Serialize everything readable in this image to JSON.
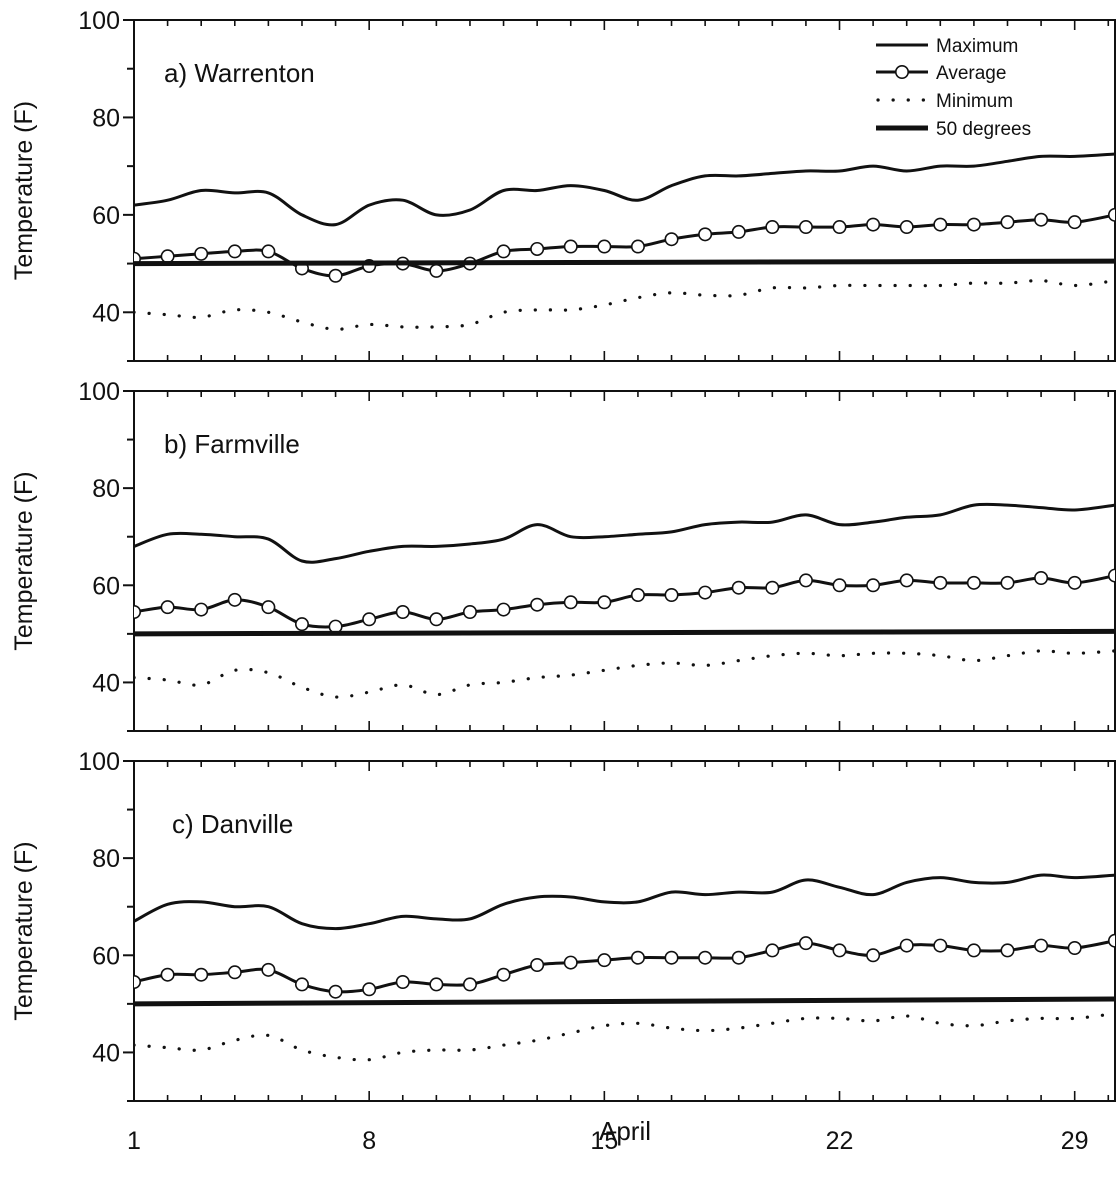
{
  "chart_data": {
    "type": "line",
    "xlabel": "April",
    "ylabel": "Temperature (F)",
    "xlim": [
      1,
      30.2
    ],
    "ylim": [
      30,
      100
    ],
    "x_ticks": [
      1,
      8,
      15,
      22,
      29
    ],
    "y_ticks": [
      40,
      60,
      80,
      100
    ],
    "legend": {
      "position": "top-right",
      "entries": [
        {
          "series": "max",
          "label": "Maximum"
        },
        {
          "series": "avg",
          "label": "Average"
        },
        {
          "series": "min",
          "label": "Minimum"
        },
        {
          "series": "base",
          "label": "50 degrees"
        }
      ]
    },
    "panels": [
      {
        "title": "a) Warrenton",
        "series": [
          {
            "key": "max",
            "name": "Maximum",
            "style": "solid",
            "x": [
              1,
              2,
              3,
              4,
              5,
              6,
              7,
              8,
              9,
              10,
              11,
              12,
              13,
              14,
              15,
              16,
              17,
              18,
              19,
              20,
              21,
              22,
              23,
              24,
              25,
              26,
              27,
              28,
              29,
              30.2
            ],
            "values": [
              62,
              63,
              65,
              64.5,
              64.5,
              60,
              58,
              62,
              63,
              60,
              61,
              65,
              65,
              66,
              65,
              63,
              66,
              68,
              68,
              68.5,
              69,
              69,
              70,
              69,
              70,
              70,
              71,
              72,
              72,
              72.5
            ]
          },
          {
            "key": "avg",
            "name": "Average",
            "style": "markers",
            "x": [
              1,
              2,
              3,
              4,
              5,
              6,
              7,
              8,
              9,
              10,
              11,
              12,
              13,
              14,
              15,
              16,
              17,
              18,
              19,
              20,
              21,
              22,
              23,
              24,
              25,
              26,
              27,
              28,
              29,
              30.2
            ],
            "values": [
              51,
              51.5,
              52,
              52.5,
              52.5,
              49,
              47.5,
              49.5,
              50,
              48.5,
              50,
              52.5,
              53,
              53.5,
              53.5,
              53.5,
              55,
              56,
              56.5,
              57.5,
              57.5,
              57.5,
              58,
              57.5,
              58,
              58,
              58.5,
              59,
              58.5,
              60
            ]
          },
          {
            "key": "min",
            "name": "Minimum",
            "style": "dotted",
            "x": [
              1,
              2,
              3,
              4,
              5,
              6,
              7,
              8,
              9,
              10,
              11,
              12,
              13,
              14,
              15,
              16,
              17,
              18,
              19,
              20,
              21,
              22,
              23,
              24,
              25,
              26,
              27,
              28,
              29,
              30.2
            ],
            "values": [
              40,
              39.5,
              39,
              40.5,
              40,
              38,
              36.5,
              37.5,
              37,
              37,
              37.5,
              40,
              40.5,
              40.5,
              41.5,
              43,
              44,
              43.5,
              43.5,
              45,
              45,
              45.5,
              45.5,
              45.5,
              45.5,
              46,
              46,
              46.5,
              45.5,
              46.5
            ]
          },
          {
            "key": "base",
            "name": "50 degrees",
            "style": "thick",
            "x": [
              1,
              30.2
            ],
            "values": [
              50,
              50.5
            ]
          }
        ]
      },
      {
        "title": "b) Farmville",
        "series": [
          {
            "key": "max",
            "name": "Maximum",
            "style": "solid",
            "x": [
              1,
              2,
              3,
              4,
              5,
              6,
              7,
              8,
              9,
              10,
              11,
              12,
              13,
              14,
              15,
              16,
              17,
              18,
              19,
              20,
              21,
              22,
              23,
              24,
              25,
              26,
              27,
              28,
              29,
              30.2
            ],
            "values": [
              68,
              70.5,
              70.5,
              70,
              69.5,
              65,
              65.5,
              67,
              68,
              68,
              68.5,
              69.5,
              72.5,
              70,
              70,
              70.5,
              71,
              72.5,
              73,
              73,
              74.5,
              72.5,
              73,
              74,
              74.5,
              76.5,
              76.5,
              76,
              75.5,
              76.5
            ]
          },
          {
            "key": "avg",
            "name": "Average",
            "style": "markers",
            "x": [
              1,
              2,
              3,
              4,
              5,
              6,
              7,
              8,
              9,
              10,
              11,
              12,
              13,
              14,
              15,
              16,
              17,
              18,
              19,
              20,
              21,
              22,
              23,
              24,
              25,
              26,
              27,
              28,
              29,
              30.2
            ],
            "values": [
              54.5,
              55.5,
              55,
              57,
              55.5,
              52,
              51.5,
              53,
              54.5,
              53,
              54.5,
              55,
              56,
              56.5,
              56.5,
              58,
              58,
              58.5,
              59.5,
              59.5,
              61,
              60,
              60,
              61,
              60.5,
              60.5,
              60.5,
              61.5,
              60.5,
              62
            ]
          },
          {
            "key": "min",
            "name": "Minimum",
            "style": "dotted",
            "x": [
              1,
              2,
              3,
              4,
              5,
              6,
              7,
              8,
              9,
              10,
              11,
              12,
              13,
              14,
              15,
              16,
              17,
              18,
              19,
              20,
              21,
              22,
              23,
              24,
              25,
              26,
              27,
              28,
              29,
              30.2
            ],
            "values": [
              41,
              40.5,
              39.5,
              42.5,
              42,
              39,
              37,
              38,
              39.5,
              37.5,
              39.5,
              40,
              41,
              41.5,
              42.5,
              43.5,
              44,
              43.5,
              44.5,
              45.5,
              46,
              45.5,
              46,
              46,
              45.5,
              44.5,
              45.5,
              46.5,
              46,
              46.5
            ]
          },
          {
            "key": "base",
            "name": "50 degrees",
            "style": "thick",
            "x": [
              1,
              30.2
            ],
            "values": [
              50,
              50.5
            ]
          }
        ]
      },
      {
        "title": "c) Danville",
        "series": [
          {
            "key": "max",
            "name": "Maximum",
            "style": "solid",
            "x": [
              1,
              2,
              3,
              4,
              5,
              6,
              7,
              8,
              9,
              10,
              11,
              12,
              13,
              14,
              15,
              16,
              17,
              18,
              19,
              20,
              21,
              22,
              23,
              24,
              25,
              26,
              27,
              28,
              29,
              30.2
            ],
            "values": [
              67,
              70.5,
              71,
              70,
              70,
              66.5,
              65.5,
              66.5,
              68,
              67.5,
              67.5,
              70.5,
              72,
              72,
              71,
              71,
              73,
              72.5,
              73,
              73,
              75.5,
              74,
              72.5,
              75,
              76,
              75,
              75,
              76.5,
              76,
              76.5
            ]
          },
          {
            "key": "avg",
            "name": "Average",
            "style": "markers",
            "x": [
              1,
              2,
              3,
              4,
              5,
              6,
              7,
              8,
              9,
              10,
              11,
              12,
              13,
              14,
              15,
              16,
              17,
              18,
              19,
              20,
              21,
              22,
              23,
              24,
              25,
              26,
              27,
              28,
              29,
              30.2
            ],
            "values": [
              54.5,
              56,
              56,
              56.5,
              57,
              54,
              52.5,
              53,
              54.5,
              54,
              54,
              56,
              58,
              58.5,
              59,
              59.5,
              59.5,
              59.5,
              59.5,
              61,
              62.5,
              61,
              60,
              62,
              62,
              61,
              61,
              62,
              61.5,
              63
            ]
          },
          {
            "key": "min",
            "name": "Minimum",
            "style": "dotted",
            "x": [
              1,
              2,
              3,
              4,
              5,
              6,
              7,
              8,
              9,
              10,
              11,
              12,
              13,
              14,
              15,
              16,
              17,
              18,
              19,
              20,
              21,
              22,
              23,
              24,
              25,
              26,
              27,
              28,
              29,
              30.2
            ],
            "values": [
              41.5,
              41,
              40.5,
              42.5,
              43.5,
              40.5,
              39,
              38.5,
              40,
              40.5,
              40.5,
              41.5,
              42.5,
              44,
              45.5,
              46,
              45,
              44.5,
              45,
              46,
              47,
              47,
              46.5,
              47.5,
              46,
              45.5,
              46.5,
              47,
              47,
              48
            ]
          },
          {
            "key": "base",
            "name": "50 degrees",
            "style": "thick",
            "x": [
              1,
              30.2
            ],
            "values": [
              50,
              51
            ]
          }
        ]
      }
    ]
  }
}
